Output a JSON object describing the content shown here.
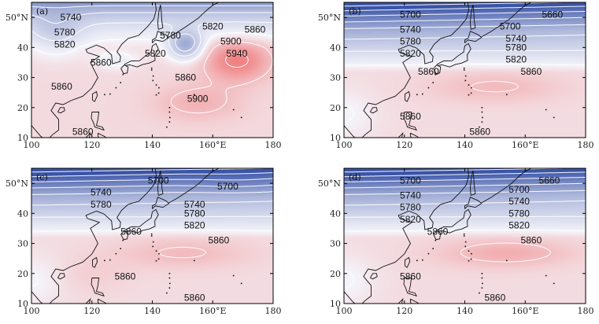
{
  "chart_data": [
    {
      "type": "contour-map",
      "panel_label": "(a)",
      "xlim": [
        100,
        180
      ],
      "ylim": [
        10,
        55
      ],
      "xticks": [
        "100",
        "120",
        "140",
        "160°E",
        "180"
      ],
      "yticks": [
        "10",
        "20",
        "30",
        "40",
        "50°N"
      ],
      "color_scale": {
        "low": "#3a54a8",
        "mid": "#f4f4fa",
        "high": "#f07070",
        "low_value": 5600,
        "mid_value": 5860,
        "high_value": 5960
      },
      "contour_labels": [
        {
          "text": "5740",
          "lon": 113,
          "lat": 50
        },
        {
          "text": "5780",
          "lon": 111,
          "lat": 45
        },
        {
          "text": "5820",
          "lon": 111,
          "lat": 41
        },
        {
          "text": "5860",
          "lon": 123,
          "lat": 35
        },
        {
          "text": "5780",
          "lon": 146,
          "lat": 44
        },
        {
          "text": "5820",
          "lon": 141,
          "lat": 38
        },
        {
          "text": "5820",
          "lon": 160,
          "lat": 47
        },
        {
          "text": "5860",
          "lon": 174,
          "lat": 46
        },
        {
          "text": "5900",
          "lon": 166,
          "lat": 42
        },
        {
          "text": "5940",
          "lon": 168,
          "lat": 38
        },
        {
          "text": "5860",
          "lon": 151,
          "lat": 30
        },
        {
          "text": "5860",
          "lon": 110,
          "lat": 27
        },
        {
          "text": "5900",
          "lon": 155,
          "lat": 23
        },
        {
          "text": "5860",
          "lon": 117,
          "lat": 12
        }
      ]
    },
    {
      "type": "contour-map",
      "panel_label": "(b)",
      "xlim": [
        100,
        180
      ],
      "ylim": [
        10,
        55
      ],
      "xticks": [
        "100",
        "120",
        "140",
        "160°E",
        "180"
      ],
      "yticks": [
        "10",
        "20",
        "30",
        "40",
        "50°N"
      ],
      "color_scale": {
        "low": "#3a54a8",
        "mid": "#f4f4fa",
        "high": "#f07070",
        "low_value": 5600,
        "mid_value": 5860,
        "high_value": 5960
      },
      "contour_labels": [
        {
          "text": "5700",
          "lon": 122,
          "lat": 51
        },
        {
          "text": "5660",
          "lon": 169,
          "lat": 51
        },
        {
          "text": "5740",
          "lon": 122,
          "lat": 46
        },
        {
          "text": "5700",
          "lon": 155,
          "lat": 47
        },
        {
          "text": "5740",
          "lon": 157,
          "lat": 43
        },
        {
          "text": "5780",
          "lon": 122,
          "lat": 42
        },
        {
          "text": "5780",
          "lon": 157,
          "lat": 40
        },
        {
          "text": "5820",
          "lon": 122,
          "lat": 38
        },
        {
          "text": "5820",
          "lon": 157,
          "lat": 36
        },
        {
          "text": "5860",
          "lon": 128,
          "lat": 32
        },
        {
          "text": "5860",
          "lon": 162,
          "lat": 32
        },
        {
          "text": "5860",
          "lon": 122,
          "lat": 17
        },
        {
          "text": "5860",
          "lon": 145,
          "lat": 12
        }
      ]
    },
    {
      "type": "contour-map",
      "panel_label": "(c)",
      "xlim": [
        100,
        180
      ],
      "ylim": [
        10,
        55
      ],
      "xticks": [
        "100",
        "120",
        "140",
        "160°E",
        "180"
      ],
      "yticks": [
        "10",
        "20",
        "30",
        "40",
        "50°N"
      ],
      "color_scale": {
        "low": "#3a54a8",
        "mid": "#f4f4fa",
        "high": "#f07070",
        "low_value": 5600,
        "mid_value": 5860,
        "high_value": 5960
      },
      "contour_labels": [
        {
          "text": "5700",
          "lon": 142,
          "lat": 51
        },
        {
          "text": "5700",
          "lon": 165,
          "lat": 49
        },
        {
          "text": "5740",
          "lon": 123,
          "lat": 47
        },
        {
          "text": "5780",
          "lon": 123,
          "lat": 43
        },
        {
          "text": "5740",
          "lon": 154,
          "lat": 43
        },
        {
          "text": "5780",
          "lon": 154,
          "lat": 40
        },
        {
          "text": "5820",
          "lon": 154,
          "lat": 36
        },
        {
          "text": "5860",
          "lon": 133,
          "lat": 34
        },
        {
          "text": "5860",
          "lon": 162,
          "lat": 31
        },
        {
          "text": "5860",
          "lon": 131,
          "lat": 19
        },
        {
          "text": "5860",
          "lon": 154,
          "lat": 12
        }
      ]
    },
    {
      "type": "contour-map",
      "panel_label": "(d)",
      "xlim": [
        100,
        180
      ],
      "ylim": [
        10,
        55
      ],
      "xticks": [
        "100",
        "120",
        "140",
        "160°E",
        "180"
      ],
      "yticks": [
        "10",
        "20",
        "30",
        "40",
        "50°N"
      ],
      "color_scale": {
        "low": "#3a54a8",
        "mid": "#f4f4fa",
        "high": "#f07070",
        "low_value": 5600,
        "mid_value": 5860,
        "high_value": 5960
      },
      "contour_labels": [
        {
          "text": "5700",
          "lon": 122,
          "lat": 51
        },
        {
          "text": "5660",
          "lon": 168,
          "lat": 51
        },
        {
          "text": "5740",
          "lon": 122,
          "lat": 46
        },
        {
          "text": "5700",
          "lon": 158,
          "lat": 48
        },
        {
          "text": "5740",
          "lon": 158,
          "lat": 44
        },
        {
          "text": "5780",
          "lon": 122,
          "lat": 42
        },
        {
          "text": "5780",
          "lon": 158,
          "lat": 40
        },
        {
          "text": "5820",
          "lon": 122,
          "lat": 38
        },
        {
          "text": "5820",
          "lon": 158,
          "lat": 36
        },
        {
          "text": "5860",
          "lon": 131,
          "lat": 34
        },
        {
          "text": "5860",
          "lon": 162,
          "lat": 31
        },
        {
          "text": "5860",
          "lon": 122,
          "lat": 19
        },
        {
          "text": "5860",
          "lon": 150,
          "lat": 12
        }
      ]
    }
  ]
}
